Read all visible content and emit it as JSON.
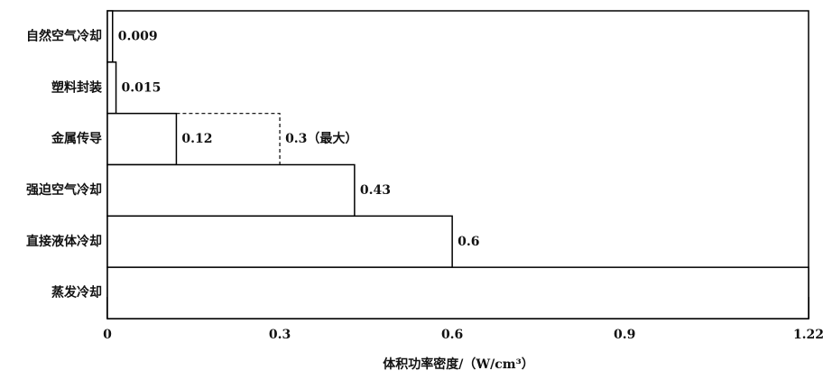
{
  "chart_data": {
    "type": "hbar",
    "categories": [
      "自然空气冷却",
      "塑料封装",
      "金属传导",
      "强迫空气冷却",
      "直接液体冷却",
      "蒸发冷却"
    ],
    "values": [
      0.009,
      0.015,
      0.12,
      0.43,
      0.6,
      1.22
    ],
    "value_labels": [
      "0.009",
      "0.015",
      "0.12",
      "0.43",
      "0.6",
      null
    ],
    "annotations": [
      {
        "text": "0.3（最大）",
        "value": 0.3,
        "category": "金属传导"
      }
    ],
    "xlim": [
      0,
      1.22
    ],
    "xticks": [
      0,
      0.3,
      0.6,
      0.9,
      1.22
    ],
    "x_label": "体积功率密度/（W/cm³）",
    "color": "#ffffff"
  }
}
